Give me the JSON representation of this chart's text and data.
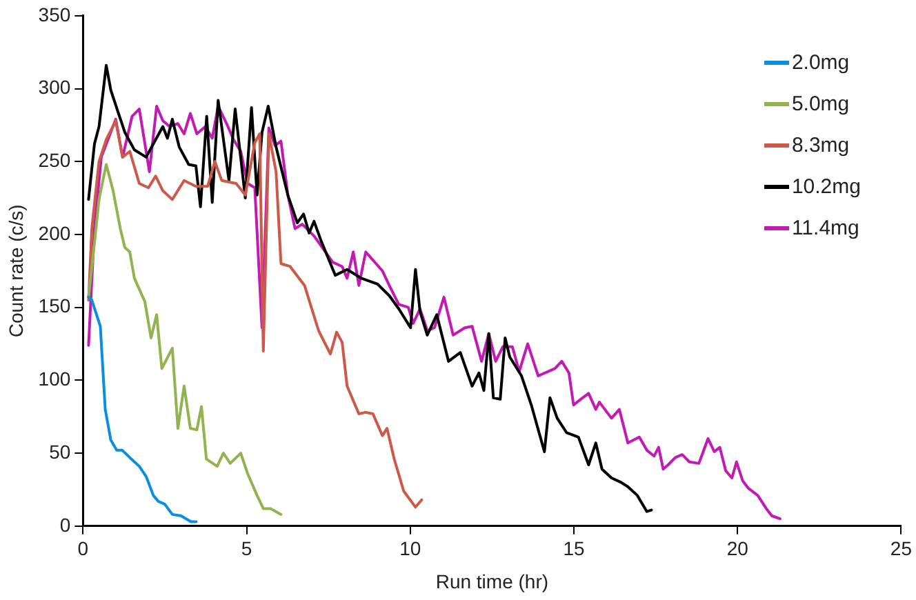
{
  "chart_data": {
    "type": "line",
    "xlabel": "Run time (hr)",
    "ylabel": "Count rate (c/s)",
    "xlim": [
      0,
      25
    ],
    "xticks": [
      0,
      5,
      10,
      15,
      20,
      25
    ],
    "ylim": [
      0,
      350
    ],
    "yticks": [
      0,
      50,
      100,
      150,
      200,
      250,
      300,
      350
    ],
    "grid": false,
    "legend": "top right",
    "marker": "none",
    "line_style": "solid",
    "series": [
      {
        "name": "2.0mg",
        "color": "#0a8fe0",
        "x": [
          0.17,
          0.27,
          0.53,
          0.68,
          0.85,
          1.03,
          1.2,
          1.43,
          1.72,
          1.93,
          2.15,
          2.3,
          2.5,
          2.73,
          3.0,
          3.3,
          3.46
        ],
        "values": [
          157,
          155,
          137,
          80,
          59,
          52,
          52,
          47,
          41,
          34,
          21,
          17,
          15,
          8,
          7,
          3,
          3
        ]
      },
      {
        "name": "5.0mg",
        "color": "#92b450",
        "x": [
          0.17,
          0.35,
          0.49,
          0.71,
          0.92,
          1.14,
          1.28,
          1.43,
          1.57,
          1.89,
          2.08,
          2.25,
          2.41,
          2.73,
          2.9,
          3.09,
          3.28,
          3.48,
          3.62,
          3.77,
          4.1,
          4.29,
          4.5,
          4.82,
          5.03,
          5.32,
          5.51,
          5.73,
          6.05
        ],
        "values": [
          157,
          194,
          224,
          248,
          230,
          204,
          191,
          188,
          170,
          154,
          129,
          145,
          108,
          122,
          67,
          96,
          67,
          66,
          82,
          46,
          41,
          50,
          43,
          50,
          36,
          21,
          12,
          12,
          8
        ]
      },
      {
        "name": "8.3mg",
        "color": "#cc5a48",
        "x": [
          0.17,
          0.27,
          0.49,
          0.71,
          1.0,
          1.21,
          1.43,
          1.72,
          2.0,
          2.22,
          2.44,
          2.73,
          3.09,
          3.45,
          3.81,
          4.03,
          4.24,
          4.68,
          4.96,
          5.25,
          5.4,
          5.51,
          5.68,
          5.9,
          6.05,
          6.33,
          6.77,
          7.2,
          7.56,
          7.75,
          7.92,
          8.07,
          8.43,
          8.64,
          8.86,
          9.15,
          9.29,
          9.51,
          9.8,
          10.16,
          10.35
        ],
        "values": [
          155,
          204,
          250,
          265,
          278,
          253,
          257,
          235,
          232,
          240,
          230,
          224,
          237,
          233,
          233,
          250,
          237,
          235,
          227,
          263,
          269,
          120,
          269,
          243,
          180,
          178,
          165,
          134,
          118,
          133,
          126,
          96,
          77,
          78,
          77,
          62,
          67,
          46,
          24,
          13,
          18
        ]
      },
      {
        "name": "10.2mg",
        "color": "#000000",
        "x": [
          0.17,
          0.35,
          0.49,
          0.71,
          0.85,
          1.07,
          1.28,
          1.57,
          1.93,
          2.22,
          2.44,
          2.58,
          2.73,
          2.94,
          3.23,
          3.45,
          3.59,
          3.78,
          3.95,
          4.13,
          4.46,
          4.65,
          4.96,
          5.15,
          5.32,
          5.47,
          5.66,
          5.9,
          6.26,
          6.55,
          6.74,
          6.91,
          7.06,
          7.27,
          7.71,
          8.07,
          8.5,
          9.0,
          9.36,
          9.65,
          10.01,
          10.16,
          10.3,
          10.52,
          10.81,
          11.17,
          11.53,
          11.89,
          12.1,
          12.25,
          12.4,
          12.54,
          12.75,
          12.9,
          13.04,
          13.4,
          13.7,
          14.1,
          14.27,
          14.49,
          14.78,
          15.14,
          15.45,
          15.67,
          15.86,
          16.15,
          16.44,
          16.65,
          16.94,
          17.23,
          17.37
        ],
        "values": [
          224,
          262,
          274,
          316,
          299,
          284,
          270,
          258,
          253,
          265,
          274,
          266,
          279,
          260,
          248,
          247,
          219,
          281,
          222,
          292,
          237,
          286,
          225,
          287,
          227,
          270,
          288,
          260,
          227,
          208,
          214,
          201,
          209,
          196,
          172,
          176,
          170,
          166,
          158,
          149,
          136,
          176,
          147,
          131,
          145,
          113,
          119,
          96,
          105,
          93,
          132,
          88,
          87,
          129,
          116,
          103,
          83,
          51,
          88,
          74,
          64,
          61,
          42,
          57,
          39,
          33,
          30,
          27,
          21,
          10,
          11
        ]
      },
      {
        "name": "11.4mg",
        "color": "#c41ab4",
        "x": [
          0.17,
          0.35,
          0.56,
          0.78,
          1.0,
          1.21,
          1.5,
          1.72,
          2.03,
          2.25,
          2.44,
          2.65,
          2.9,
          3.09,
          3.28,
          3.48,
          3.74,
          3.95,
          4.13,
          4.39,
          4.6,
          4.82,
          5.03,
          5.25,
          5.47,
          5.68,
          5.87,
          6.05,
          6.26,
          6.48,
          6.7,
          7.06,
          7.63,
          7.92,
          8.07,
          8.26,
          8.43,
          8.64,
          9.15,
          9.36,
          9.65,
          9.94,
          10.09,
          10.3,
          10.52,
          10.74,
          11.03,
          11.31,
          11.67,
          11.89,
          12.18,
          12.4,
          12.61,
          12.83,
          13.12,
          13.33,
          13.59,
          13.91,
          14.42,
          14.63,
          14.85,
          14.99,
          15.21,
          15.45,
          15.67,
          15.78,
          16.15,
          16.39,
          16.65,
          17.0,
          17.23,
          17.45,
          17.59,
          17.73,
          17.88,
          18.1,
          18.31,
          18.53,
          18.82,
          19.1,
          19.29,
          19.46,
          19.64,
          19.83,
          19.97,
          20.16,
          20.33,
          20.62,
          20.88,
          21.05,
          21.3
        ],
        "values": [
          124,
          204,
          253,
          266,
          279,
          253,
          281,
          286,
          243,
          288,
          278,
          274,
          276,
          269,
          283,
          269,
          274,
          266,
          288,
          276,
          265,
          257,
          235,
          232,
          136,
          273,
          261,
          264,
          227,
          204,
          207,
          199,
          181,
          178,
          170,
          188,
          165,
          188,
          175,
          165,
          152,
          150,
          139,
          149,
          134,
          136,
          157,
          131,
          136,
          137,
          113,
          132,
          113,
          123,
          123,
          106,
          125,
          103,
          108,
          113,
          105,
          83,
          87,
          91,
          80,
          85,
          74,
          80,
          57,
          61,
          52,
          48,
          54,
          39,
          42,
          47,
          49,
          44,
          43,
          60,
          51,
          54,
          38,
          33,
          44,
          31,
          26,
          21,
          12,
          7,
          5
        ]
      }
    ]
  }
}
